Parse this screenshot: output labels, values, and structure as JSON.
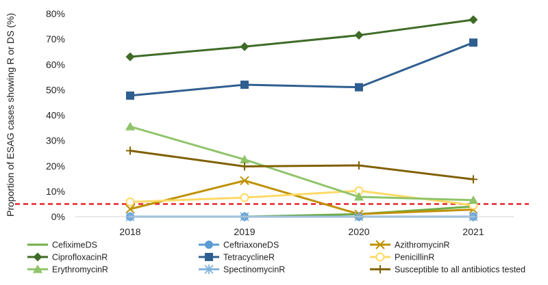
{
  "chart_data": {
    "type": "line",
    "title": "",
    "xlabel": "",
    "ylabel": "Proportion of ESAG cases showing R or DS (%)",
    "categories": [
      "2018",
      "2019",
      "2020",
      "2021"
    ],
    "ylim": [
      0,
      80
    ],
    "yticks": [
      0,
      10,
      20,
      30,
      40,
      50,
      60,
      70,
      80
    ],
    "ytick_labels": [
      "0%",
      "10%",
      "20%",
      "30%",
      "40%",
      "50%",
      "60%",
      "70%",
      "80%"
    ],
    "grid": false,
    "legend_position": "bottom",
    "reference_line": {
      "value": 5,
      "color": "#e8222a",
      "style": "dashed"
    },
    "series": [
      {
        "name": "CefiximeDS",
        "color": "#70ad47",
        "marker": "none",
        "values": [
          0,
          0,
          1,
          4
        ]
      },
      {
        "name": "CeftriaxoneDS",
        "color": "#5b9bd5",
        "marker": "circle",
        "values": [
          0,
          0,
          0,
          0
        ]
      },
      {
        "name": "AzithromycinR",
        "color": "#bf9000",
        "marker": "x",
        "values": [
          3,
          14.2,
          1,
          2.8
        ]
      },
      {
        "name": "CiprofloxacinR",
        "color": "#3e6b26",
        "marker": "diamond",
        "values": [
          63,
          67,
          71.5,
          77.6
        ]
      },
      {
        "name": "TetracyclineR",
        "color": "#2e5e8f",
        "marker": "square",
        "values": [
          47.7,
          52,
          51,
          68.6
        ]
      },
      {
        "name": "PenicillinR",
        "color": "#ffd966",
        "marker": "circle-open",
        "values": [
          5.8,
          7.5,
          10.2,
          4.5
        ]
      },
      {
        "name": "ErythromycinR",
        "color": "#8fc46a",
        "marker": "triangle",
        "values": [
          35.5,
          22.5,
          7.8,
          6.5
        ]
      },
      {
        "name": "SpectinomycinR",
        "color": "#7fb2dc",
        "marker": "star",
        "values": [
          0,
          0,
          0,
          0
        ]
      },
      {
        "name": "Susceptible to all antibiotics tested",
        "color": "#7f6000",
        "marker": "plus",
        "values": [
          26,
          19.8,
          20.2,
          14.7
        ]
      }
    ]
  }
}
